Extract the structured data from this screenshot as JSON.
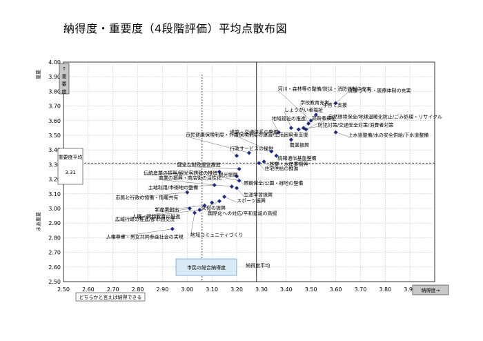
{
  "title": "納得度・重要度（4段階評価）平均点散布図",
  "chart_data": {
    "type": "scatter",
    "xlabel": "納得度→",
    "ylabel": "↑重要度",
    "xlim": [
      2.5,
      4.0
    ],
    "ylim": [
      2.5,
      4.0
    ],
    "x_ticks": [
      "2.50",
      "2.60",
      "2.70",
      "2.80",
      "2.90",
      "3.00",
      "3.10",
      "3.20",
      "3.30",
      "3.40",
      "3.50",
      "3.60",
      "3.70",
      "3.80",
      "3.90",
      "4.00"
    ],
    "y_ticks": [
      "2.50",
      "2.60",
      "2.70",
      "2.80",
      "2.90",
      "3.00",
      "3.10",
      "3.20",
      "3.30",
      "3.40",
      "3.50",
      "3.60",
      "3.70",
      "3.80",
      "3.90",
      "4.00"
    ],
    "grid": true,
    "reference_lines": {
      "x_overall": {
        "value": 3.06,
        "label": "市民の総合納得度"
      },
      "x_avg": {
        "value": 3.28,
        "label": "納得度平均"
      },
      "y_avg": {
        "value": 3.31,
        "label": "重要度平均",
        "value_label": "3.31"
      }
    },
    "side_labels": {
      "y_top": "重要",
      "y_bottom": "まあ重要",
      "x_left": "どちらかと言えば納得できる"
    },
    "points": [
      {
        "x": 3.6,
        "y": 3.72,
        "label": "健康づくり・医療体制の充実"
      },
      {
        "x": 3.52,
        "y": 3.64,
        "label": "子育て支援"
      },
      {
        "x": 3.49,
        "y": 3.58,
        "label": "学校教育充実"
      },
      {
        "x": 3.5,
        "y": 3.6,
        "label": "河川・森林等の整備/防災・消防体制の充実"
      },
      {
        "x": 3.42,
        "y": 3.55,
        "label": "しょうがい者福祉"
      },
      {
        "x": 3.47,
        "y": 3.55,
        "label": "高齢者福祉"
      },
      {
        "x": 3.48,
        "y": 3.54,
        "label": "自然環境保全/地球温暖化防止/ごみ処理・リサイクル"
      },
      {
        "x": 3.45,
        "y": 3.54,
        "label": "防犯対策/交通安全対策/消費者対策"
      },
      {
        "x": 3.37,
        "y": 3.52,
        "label": "地域福祉の推進"
      },
      {
        "x": 3.6,
        "y": 3.52,
        "label": "上水道整備/水の安全供給/下水道整備"
      },
      {
        "x": 3.42,
        "y": 3.47,
        "label": "農業振興"
      },
      {
        "x": 3.34,
        "y": 3.39,
        "label": "道路・交通体系の整備"
      },
      {
        "x": 3.36,
        "y": 3.36,
        "label": "情報通信基盤整備"
      },
      {
        "x": 3.25,
        "y": 3.38,
        "label": "市民健康保険制度・介護保険制度の運営/生活困窮者支援"
      },
      {
        "x": 3.2,
        "y": 3.36,
        "label": "行政サービスの提供"
      },
      {
        "x": 3.31,
        "y": 3.32,
        "label": "林業・水産業振興"
      },
      {
        "x": 3.29,
        "y": 3.31,
        "label": "住宅供給の推進"
      },
      {
        "x": 3.21,
        "y": 3.27,
        "label": "健全な財政運営推進"
      },
      {
        "x": 3.2,
        "y": 3.22,
        "label": "景観保全/公園・緑地の整備"
      },
      {
        "x": 3.13,
        "y": 3.25,
        "label": "伝統産業の振興/観光客誘致の推進"
      },
      {
        "x": 3.21,
        "y": 3.19,
        "label": "観光振興"
      },
      {
        "x": 3.2,
        "y": 3.14,
        "label": "生涯学習振興"
      },
      {
        "x": 3.18,
        "y": 3.15,
        "label": "商業の振興・商店街の活性化"
      },
      {
        "x": 3.11,
        "y": 3.16,
        "label": "土地利用/市街地の整備"
      },
      {
        "x": 3.15,
        "y": 3.08,
        "label": "スポーツ振興"
      },
      {
        "x": 3.13,
        "y": 3.05,
        "label": "文化の振興"
      },
      {
        "x": 3.0,
        "y": 3.11,
        "label": "市民と行政の協働・情報共有"
      },
      {
        "x": 3.1,
        "y": 3.04,
        "label": "国際化への対応/平和意識の高揚"
      },
      {
        "x": 3.07,
        "y": 3.02,
        "label": "新産業創出"
      },
      {
        "x": 3.05,
        "y": 2.99,
        "label": "人権・同和教育の推進"
      },
      {
        "x": 3.03,
        "y": 2.97,
        "label": "地域コミュニティづくり"
      },
      {
        "x": 3.01,
        "y": 3.0,
        "label": "広域行政の推進/都市間交流"
      },
      {
        "x": 2.94,
        "y": 2.86,
        "label": "人権尊重・男女共同参画社会の実現"
      }
    ]
  }
}
